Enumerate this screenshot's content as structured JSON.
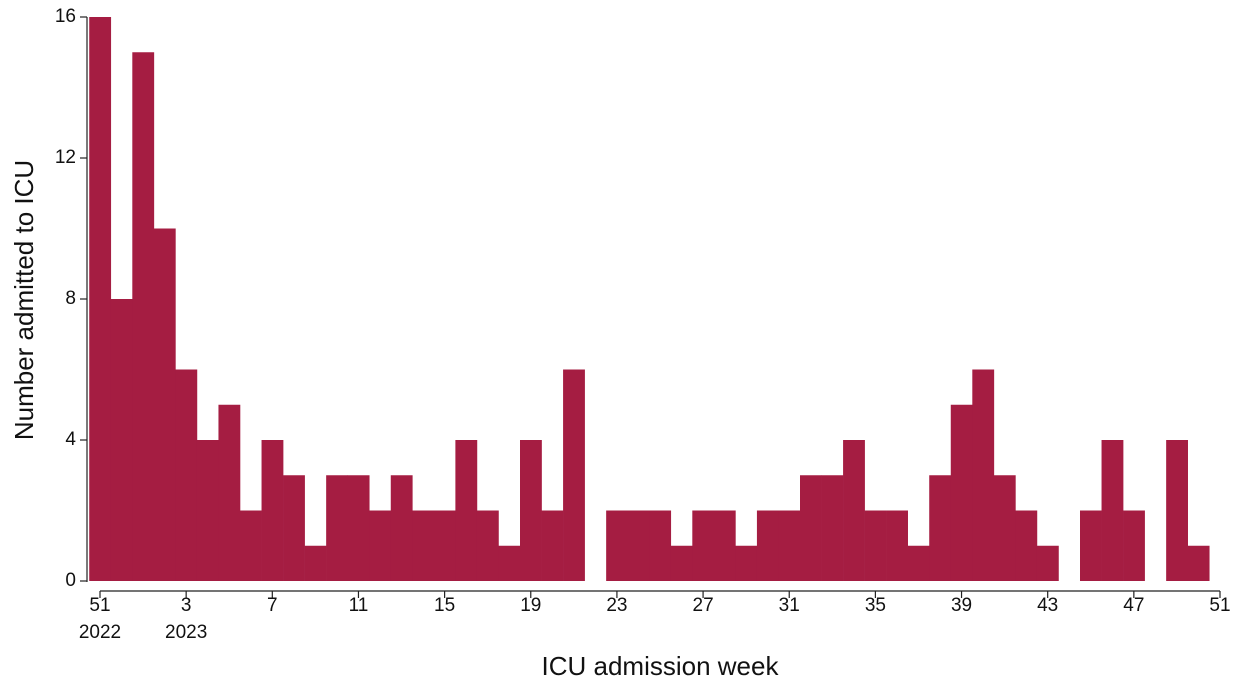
{
  "chart_data": {
    "type": "bar",
    "x_label": "ICU admission week",
    "y_label": "Number admitted to ICU",
    "categories": [
      "51",
      null,
      null,
      null,
      "3",
      null,
      null,
      null,
      "7",
      null,
      null,
      null,
      "11",
      null,
      null,
      null,
      "15",
      null,
      null,
      null,
      "19",
      null,
      null,
      null,
      "23",
      null,
      null,
      null,
      "27",
      null,
      null,
      null,
      "31",
      null,
      null,
      null,
      "35",
      null,
      null,
      null,
      "39",
      null,
      null,
      null,
      "43",
      null,
      null,
      null,
      "47",
      null,
      null,
      null,
      "51"
    ],
    "category_years": [
      "2022",
      null,
      null,
      null,
      "2023",
      null,
      null,
      null,
      null,
      null,
      null,
      null,
      null,
      null,
      null,
      null,
      null,
      null,
      null,
      null,
      null,
      null,
      null,
      null,
      null,
      null,
      null,
      null,
      null,
      null,
      null,
      null,
      null,
      null,
      null,
      null,
      null,
      null,
      null,
      null,
      null,
      null,
      null,
      null,
      null,
      null,
      null,
      null,
      null,
      null,
      null,
      null,
      null
    ],
    "values": [
      16,
      8,
      15,
      10,
      6,
      4,
      5,
      2,
      4,
      3,
      1,
      3,
      3,
      2,
      3,
      2,
      2,
      4,
      2,
      1,
      4,
      2,
      6,
      0,
      2,
      2,
      2,
      1,
      2,
      2,
      1,
      2,
      2,
      3,
      3,
      4,
      2,
      2,
      1,
      3,
      5,
      6,
      3,
      2,
      1,
      0,
      2,
      4,
      2,
      0,
      4,
      1,
      null
    ],
    "color": "#a51d42",
    "ylim": [
      0,
      16
    ],
    "yticks": [
      0,
      4,
      8,
      12,
      16
    ],
    "grid": false
  }
}
